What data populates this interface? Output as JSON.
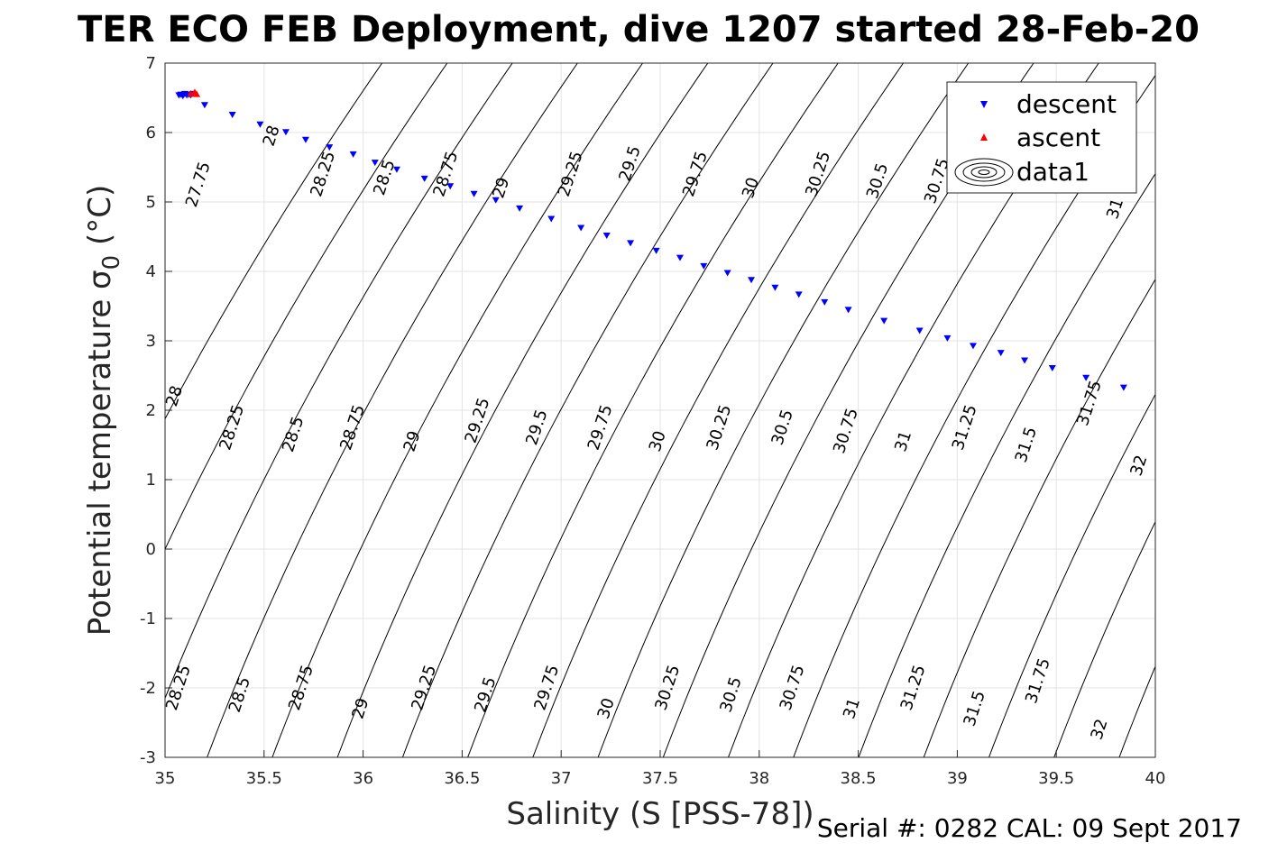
{
  "chart_data": {
    "type": "scatter",
    "title": "TER ECO FEB Deployment, dive 1207 started 28-Feb-20",
    "xlabel": "Salinity (S [PSS-78])",
    "ylabel_main": "Potential temperature σ",
    "ylabel_sub": "0",
    "ylabel_unit": " (°C)",
    "footer": "Serial #: 0282  CAL: 09 Sept 2017",
    "xlim": [
      35,
      40
    ],
    "ylim": [
      -3,
      7
    ],
    "grid": true,
    "x_ticks": [
      35,
      35.5,
      36,
      36.5,
      37,
      37.5,
      38,
      38.5,
      39,
      39.5,
      40
    ],
    "x_tick_labels": [
      "35",
      "35.5",
      "36",
      "36.5",
      "37",
      "37.5",
      "38",
      "38.5",
      "39",
      "39.5",
      "40"
    ],
    "y_ticks": [
      -3,
      -2,
      -1,
      0,
      1,
      2,
      3,
      4,
      5,
      6,
      7
    ],
    "y_tick_labels": [
      "-3",
      "-2",
      "-1",
      "0",
      "1",
      "2",
      "3",
      "4",
      "5",
      "6",
      "7"
    ],
    "legend": {
      "position": "top-right",
      "entries": [
        "descent",
        "ascent",
        "data1"
      ]
    },
    "series": [
      {
        "name": "descent",
        "color": "#0000ff",
        "marker": "triangle-down",
        "points": [
          [
            35.07,
            6.54
          ],
          [
            35.08,
            6.55
          ],
          [
            35.09,
            6.53
          ],
          [
            35.1,
            6.56
          ],
          [
            35.11,
            6.54
          ],
          [
            35.12,
            6.55
          ],
          [
            35.13,
            6.54
          ],
          [
            35.14,
            6.56
          ],
          [
            35.2,
            6.4
          ],
          [
            35.34,
            6.26
          ],
          [
            35.48,
            6.12
          ],
          [
            35.61,
            6.01
          ],
          [
            35.71,
            5.9
          ],
          [
            35.83,
            5.79
          ],
          [
            35.95,
            5.69
          ],
          [
            36.06,
            5.57
          ],
          [
            36.17,
            5.47
          ],
          [
            36.31,
            5.34
          ],
          [
            36.44,
            5.23
          ],
          [
            36.56,
            5.12
          ],
          [
            36.67,
            5.03
          ],
          [
            36.79,
            4.91
          ],
          [
            36.95,
            4.76
          ],
          [
            37.1,
            4.63
          ],
          [
            37.23,
            4.52
          ],
          [
            37.35,
            4.41
          ],
          [
            37.48,
            4.3
          ],
          [
            37.6,
            4.2
          ],
          [
            37.72,
            4.08
          ],
          [
            37.84,
            3.98
          ],
          [
            37.96,
            3.88
          ],
          [
            38.08,
            3.77
          ],
          [
            38.2,
            3.67
          ],
          [
            38.33,
            3.56
          ],
          [
            38.45,
            3.45
          ],
          [
            38.63,
            3.29
          ],
          [
            38.81,
            3.15
          ],
          [
            38.95,
            3.04
          ],
          [
            39.08,
            2.93
          ],
          [
            39.22,
            2.83
          ],
          [
            39.34,
            2.72
          ],
          [
            39.48,
            2.61
          ],
          [
            39.65,
            2.47
          ],
          [
            39.84,
            2.33
          ]
        ]
      },
      {
        "name": "ascent",
        "color": "#ff0000",
        "marker": "triangle-up",
        "points": [
          [
            35.13,
            6.56
          ],
          [
            35.15,
            6.58
          ],
          [
            35.16,
            6.55
          ]
        ]
      }
    ],
    "contour_levels": [
      27.75,
      28,
      28.25,
      28.5,
      28.75,
      29,
      29.25,
      29.5,
      29.75,
      30,
      30.25,
      30.5,
      30.75,
      31,
      31.25,
      31.5,
      31.75,
      32
    ],
    "contour_labels": [
      {
        "text": "27.75",
        "s": 35.17,
        "t": 5.25
      },
      {
        "text": "28",
        "s": 35.54,
        "t": 5.95
      },
      {
        "text": "28.25",
        "s": 35.8,
        "t": 5.4
      },
      {
        "text": "28.5",
        "s": 36.11,
        "t": 5.35
      },
      {
        "text": "28.75",
        "s": 36.42,
        "t": 5.4
      },
      {
        "text": "29",
        "s": 36.7,
        "t": 5.2
      },
      {
        "text": "29.25",
        "s": 37.05,
        "t": 5.4
      },
      {
        "text": "29.5",
        "s": 37.35,
        "t": 5.55
      },
      {
        "text": "29.75",
        "s": 37.68,
        "t": 5.4
      },
      {
        "text": "30",
        "s": 37.96,
        "t": 5.2
      },
      {
        "text": "30.25",
        "s": 38.3,
        "t": 5.4
      },
      {
        "text": "30.5",
        "s": 38.6,
        "t": 5.3
      },
      {
        "text": "30.75",
        "s": 38.9,
        "t": 5.3
      },
      {
        "text": "31",
        "s": 39.8,
        "t": 4.9
      },
      {
        "text": "28",
        "s": 35.05,
        "t": 2.2
      },
      {
        "text": "28.25",
        "s": 35.34,
        "t": 1.75
      },
      {
        "text": "28.5",
        "s": 35.65,
        "t": 1.65
      },
      {
        "text": "28.75",
        "s": 35.95,
        "t": 1.75
      },
      {
        "text": "29",
        "s": 36.25,
        "t": 1.55
      },
      {
        "text": "29.25",
        "s": 36.58,
        "t": 1.85
      },
      {
        "text": "29.5",
        "s": 36.88,
        "t": 1.75
      },
      {
        "text": "29.75",
        "s": 37.2,
        "t": 1.75
      },
      {
        "text": "30",
        "s": 37.49,
        "t": 1.55
      },
      {
        "text": "30.25",
        "s": 37.8,
        "t": 1.75
      },
      {
        "text": "30.5",
        "s": 38.12,
        "t": 1.75
      },
      {
        "text": "30.75",
        "s": 38.44,
        "t": 1.7
      },
      {
        "text": "31",
        "s": 38.73,
        "t": 1.55
      },
      {
        "text": "31.25",
        "s": 39.04,
        "t": 1.75
      },
      {
        "text": "31.5",
        "s": 39.35,
        "t": 1.5
      },
      {
        "text": "31.75",
        "s": 39.67,
        "t": 2.1
      },
      {
        "text": "32",
        "s": 39.92,
        "t": 1.2
      },
      {
        "text": "28.25",
        "s": 35.07,
        "t": -2.0
      },
      {
        "text": "28.5",
        "s": 35.38,
        "t": -2.1
      },
      {
        "text": "28.75",
        "s": 35.69,
        "t": -2.0
      },
      {
        "text": "29",
        "s": 35.99,
        "t": -2.3
      },
      {
        "text": "29.25",
        "s": 36.31,
        "t": -2.0
      },
      {
        "text": "29.5",
        "s": 36.62,
        "t": -2.1
      },
      {
        "text": "29.75",
        "s": 36.93,
        "t": -2.0
      },
      {
        "text": "30",
        "s": 37.23,
        "t": -2.3
      },
      {
        "text": "30.25",
        "s": 37.54,
        "t": -2.0
      },
      {
        "text": "30.5",
        "s": 37.86,
        "t": -2.1
      },
      {
        "text": "30.75",
        "s": 38.17,
        "t": -2.0
      },
      {
        "text": "31",
        "s": 38.47,
        "t": -2.3
      },
      {
        "text": "31.25",
        "s": 38.78,
        "t": -2.0
      },
      {
        "text": "31.5",
        "s": 39.09,
        "t": -2.3
      },
      {
        "text": "31.75",
        "s": 39.41,
        "t": -1.9
      },
      {
        "text": "32",
        "s": 39.72,
        "t": -2.6
      }
    ]
  }
}
